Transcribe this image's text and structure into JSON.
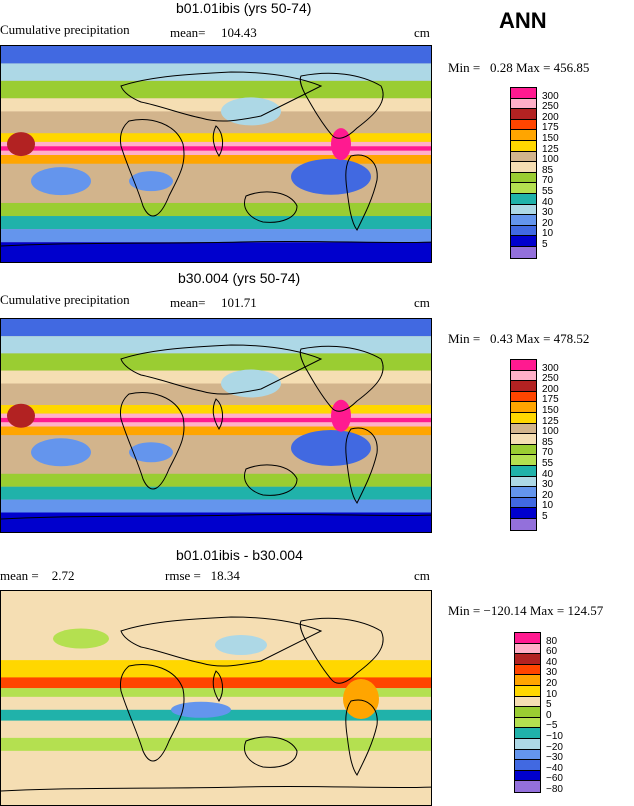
{
  "season": "ANN",
  "units": "cm",
  "panels": [
    {
      "title": "b01.01ibis (yrs 50-74)",
      "field_label": "Cumulative precipitation",
      "mean_label": "mean=",
      "mean_value": "104.43",
      "minmax": "Min =   0.28 Max = 456.85",
      "colors": [
        "#ff1a90",
        "#ffb0c8",
        "#b22222",
        "#ff4500",
        "#ffa500",
        "#ffd700",
        "#d2b48c",
        "#f5deb3",
        "#9acd32",
        "#b4e050",
        "#20b2aa",
        "#add8e6",
        "#6495ed",
        "#4169e1",
        "#0000cd",
        "#9370db"
      ],
      "levels": [
        "300",
        "250",
        "200",
        "175",
        "150",
        "125",
        "100",
        "85",
        "70",
        "55",
        "40",
        "30",
        "20",
        "10",
        "5"
      ]
    },
    {
      "title": "b30.004 (yrs 50-74)",
      "field_label": "Cumulative precipitation",
      "mean_label": "mean=",
      "mean_value": "101.71",
      "minmax": "Min =   0.43 Max = 478.52",
      "colors": [
        "#ff1a90",
        "#ffb0c8",
        "#b22222",
        "#ff4500",
        "#ffa500",
        "#ffd700",
        "#d2b48c",
        "#f5deb3",
        "#9acd32",
        "#b4e050",
        "#20b2aa",
        "#add8e6",
        "#6495ed",
        "#4169e1",
        "#0000cd",
        "#9370db"
      ],
      "levels": [
        "300",
        "250",
        "200",
        "175",
        "150",
        "125",
        "100",
        "85",
        "70",
        "55",
        "40",
        "30",
        "20",
        "10",
        "5"
      ]
    },
    {
      "title": "b01.01ibis - b30.004",
      "mean_text": "mean =    2.72",
      "rmse_text": "rmse =   18.34",
      "minmax": "Min = −120.14 Max = 124.57",
      "colors": [
        "#ff1a90",
        "#ffb0c8",
        "#b22222",
        "#ff4500",
        "#ffa500",
        "#ffd700",
        "#f5deb3",
        "#9acd32",
        "#b4e050",
        "#20b2aa",
        "#add8e6",
        "#6495ed",
        "#4169e1",
        "#0000cd",
        "#9370db"
      ],
      "levels": [
        "80",
        "60",
        "40",
        "30",
        "20",
        "10",
        "5",
        "0",
        "−5",
        "−10",
        "−20",
        "−30",
        "−40",
        "−60",
        "−80"
      ]
    }
  ]
}
